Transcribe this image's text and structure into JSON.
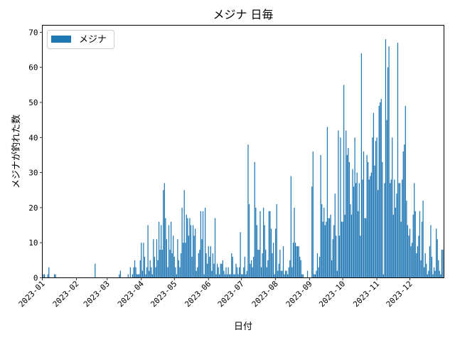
{
  "chart_data": {
    "type": "bar",
    "title": "メジナ 日毎",
    "xlabel": "日付",
    "ylabel": "メジナが釣れた数",
    "legend": {
      "label": "メジナ",
      "location": "top-left"
    },
    "color": "#1f77b4",
    "ylim": [
      0,
      72
    ],
    "xlim": [
      "2023-01-01",
      "2023-12-31"
    ],
    "y_ticks": [
      "0",
      "10",
      "20",
      "30",
      "40",
      "50",
      "60",
      "70"
    ],
    "x_ticks": [
      "2023-01",
      "2023-02",
      "2023-03",
      "2023-04",
      "2023-05",
      "2023-06",
      "2023-07",
      "2023-08",
      "2023-09",
      "2023-10",
      "2023-11",
      "2023-12"
    ],
    "series": [
      {
        "name": "メジナ",
        "points": [
          [
            "2023-01-02",
            1
          ],
          [
            "2023-01-03",
            1
          ],
          [
            "2023-01-06",
            1
          ],
          [
            "2023-01-07",
            3
          ],
          [
            "2023-01-12",
            1
          ],
          [
            "2023-01-13",
            1
          ],
          [
            "2023-02-18",
            4
          ],
          [
            "2023-03-12",
            1
          ],
          [
            "2023-03-13",
            2
          ],
          [
            "2023-03-20",
            1
          ],
          [
            "2023-03-22",
            3
          ],
          [
            "2023-03-24",
            1
          ],
          [
            "2023-03-25",
            3
          ],
          [
            "2023-03-26",
            5
          ],
          [
            "2023-03-27",
            3
          ],
          [
            "2023-03-28",
            1
          ],
          [
            "2023-03-29",
            1
          ],
          [
            "2023-03-30",
            1
          ],
          [
            "2023-03-31",
            5
          ],
          [
            "2023-04-01",
            10
          ],
          [
            "2023-04-02",
            2
          ],
          [
            "2023-04-03",
            10
          ],
          [
            "2023-04-04",
            6
          ],
          [
            "2023-04-05",
            1
          ],
          [
            "2023-04-06",
            3
          ],
          [
            "2023-04-07",
            15
          ],
          [
            "2023-04-08",
            2
          ],
          [
            "2023-04-09",
            5
          ],
          [
            "2023-04-10",
            3
          ],
          [
            "2023-04-11",
            1
          ],
          [
            "2023-04-12",
            11
          ],
          [
            "2023-04-13",
            6
          ],
          [
            "2023-04-14",
            3
          ],
          [
            "2023-04-15",
            11
          ],
          [
            "2023-04-16",
            5
          ],
          [
            "2023-04-17",
            16
          ],
          [
            "2023-04-18",
            8
          ],
          [
            "2023-04-19",
            15
          ],
          [
            "2023-04-20",
            8
          ],
          [
            "2023-04-21",
            25
          ],
          [
            "2023-04-22",
            27
          ],
          [
            "2023-04-23",
            17
          ],
          [
            "2023-04-24",
            11
          ],
          [
            "2023-04-25",
            3
          ],
          [
            "2023-04-26",
            15
          ],
          [
            "2023-04-27",
            8
          ],
          [
            "2023-04-28",
            16
          ],
          [
            "2023-04-29",
            7
          ],
          [
            "2023-04-30",
            12
          ],
          [
            "2023-05-01",
            6
          ],
          [
            "2023-05-02",
            3
          ],
          [
            "2023-05-03",
            1
          ],
          [
            "2023-05-04",
            11
          ],
          [
            "2023-05-05",
            5
          ],
          [
            "2023-05-06",
            3
          ],
          [
            "2023-05-07",
            7
          ],
          [
            "2023-05-08",
            20
          ],
          [
            "2023-05-09",
            10
          ],
          [
            "2023-05-10",
            25
          ],
          [
            "2023-05-11",
            10
          ],
          [
            "2023-05-12",
            18
          ],
          [
            "2023-05-13",
            17
          ],
          [
            "2023-05-14",
            12
          ],
          [
            "2023-05-15",
            17
          ],
          [
            "2023-05-16",
            15
          ],
          [
            "2023-05-17",
            6
          ],
          [
            "2023-05-18",
            15
          ],
          [
            "2023-05-19",
            12
          ],
          [
            "2023-05-20",
            14
          ],
          [
            "2023-05-21",
            2
          ],
          [
            "2023-05-22",
            3
          ],
          [
            "2023-05-23",
            7
          ],
          [
            "2023-05-24",
            8
          ],
          [
            "2023-05-25",
            19
          ],
          [
            "2023-05-26",
            11
          ],
          [
            "2023-05-27",
            19
          ],
          [
            "2023-05-28",
            1
          ],
          [
            "2023-05-29",
            20
          ],
          [
            "2023-05-30",
            7
          ],
          [
            "2023-05-31",
            4
          ],
          [
            "2023-06-01",
            9
          ],
          [
            "2023-06-02",
            6
          ],
          [
            "2023-06-03",
            9
          ],
          [
            "2023-06-04",
            2
          ],
          [
            "2023-06-05",
            7
          ],
          [
            "2023-06-06",
            4
          ],
          [
            "2023-06-07",
            17
          ],
          [
            "2023-06-08",
            1
          ],
          [
            "2023-06-09",
            4
          ],
          [
            "2023-06-10",
            3
          ],
          [
            "2023-06-11",
            1
          ],
          [
            "2023-06-12",
            4
          ],
          [
            "2023-06-13",
            4
          ],
          [
            "2023-06-14",
            5
          ],
          [
            "2023-06-15",
            2
          ],
          [
            "2023-06-16",
            1
          ],
          [
            "2023-06-17",
            3
          ],
          [
            "2023-06-18",
            1
          ],
          [
            "2023-06-19",
            3
          ],
          [
            "2023-06-20",
            1
          ],
          [
            "2023-06-21",
            1
          ],
          [
            "2023-06-22",
            7
          ],
          [
            "2023-06-23",
            6
          ],
          [
            "2023-06-24",
            1
          ],
          [
            "2023-06-25",
            1
          ],
          [
            "2023-06-26",
            4
          ],
          [
            "2023-06-27",
            3
          ],
          [
            "2023-06-28",
            1
          ],
          [
            "2023-06-29",
            3
          ],
          [
            "2023-06-30",
            13
          ],
          [
            "2023-07-01",
            1
          ],
          [
            "2023-07-02",
            1
          ],
          [
            "2023-07-03",
            3
          ],
          [
            "2023-07-04",
            6
          ],
          [
            "2023-07-05",
            1
          ],
          [
            "2023-07-06",
            2
          ],
          [
            "2023-07-07",
            38
          ],
          [
            "2023-07-08",
            21
          ],
          [
            "2023-07-09",
            4
          ],
          [
            "2023-07-10",
            5
          ],
          [
            "2023-07-11",
            3
          ],
          [
            "2023-07-12",
            6
          ],
          [
            "2023-07-13",
            33
          ],
          [
            "2023-07-14",
            20
          ],
          [
            "2023-07-15",
            15
          ],
          [
            "2023-07-16",
            8
          ],
          [
            "2023-07-17",
            8
          ],
          [
            "2023-07-18",
            19
          ],
          [
            "2023-07-19",
            3
          ],
          [
            "2023-07-20",
            7
          ],
          [
            "2023-07-21",
            20
          ],
          [
            "2023-07-22",
            15
          ],
          [
            "2023-07-23",
            8
          ],
          [
            "2023-07-24",
            3
          ],
          [
            "2023-07-25",
            5
          ],
          [
            "2023-07-26",
            19
          ],
          [
            "2023-07-27",
            19
          ],
          [
            "2023-07-28",
            14
          ],
          [
            "2023-07-29",
            7
          ],
          [
            "2023-07-30",
            10
          ],
          [
            "2023-07-31",
            1
          ],
          [
            "2023-08-01",
            14
          ],
          [
            "2023-08-02",
            21
          ],
          [
            "2023-08-03",
            2
          ],
          [
            "2023-08-04",
            4
          ],
          [
            "2023-08-05",
            8
          ],
          [
            "2023-08-06",
            2
          ],
          [
            "2023-08-07",
            2
          ],
          [
            "2023-08-08",
            9
          ],
          [
            "2023-08-09",
            1
          ],
          [
            "2023-08-10",
            2
          ],
          [
            "2023-08-11",
            2
          ],
          [
            "2023-08-12",
            1
          ],
          [
            "2023-08-13",
            3
          ],
          [
            "2023-08-14",
            5
          ],
          [
            "2023-08-15",
            29
          ],
          [
            "2023-08-16",
            3
          ],
          [
            "2023-08-17",
            10
          ],
          [
            "2023-08-18",
            20
          ],
          [
            "2023-08-19",
            10
          ],
          [
            "2023-08-20",
            9
          ],
          [
            "2023-08-21",
            9
          ],
          [
            "2023-08-22",
            9
          ],
          [
            "2023-08-23",
            6
          ],
          [
            "2023-08-24",
            5
          ],
          [
            "2023-08-25",
            1
          ],
          [
            "2023-08-26",
            1
          ],
          [
            "2023-08-30",
            2
          ],
          [
            "2023-09-03",
            26
          ],
          [
            "2023-09-04",
            36
          ],
          [
            "2023-09-05",
            1
          ],
          [
            "2023-09-06",
            1
          ],
          [
            "2023-09-07",
            2
          ],
          [
            "2023-09-08",
            7
          ],
          [
            "2023-09-09",
            3
          ],
          [
            "2023-09-10",
            6
          ],
          [
            "2023-09-11",
            35
          ],
          [
            "2023-09-12",
            21
          ],
          [
            "2023-09-13",
            16
          ],
          [
            "2023-09-14",
            20
          ],
          [
            "2023-09-15",
            15
          ],
          [
            "2023-09-16",
            16
          ],
          [
            "2023-09-17",
            43
          ],
          [
            "2023-09-18",
            17
          ],
          [
            "2023-09-19",
            17
          ],
          [
            "2023-09-20",
            18
          ],
          [
            "2023-09-21",
            5
          ],
          [
            "2023-09-22",
            11
          ],
          [
            "2023-09-23",
            15
          ],
          [
            "2023-09-24",
            24
          ],
          [
            "2023-09-25",
            12
          ],
          [
            "2023-09-26",
            2
          ],
          [
            "2023-09-27",
            42
          ],
          [
            "2023-09-28",
            12
          ],
          [
            "2023-09-29",
            40
          ],
          [
            "2023-09-30",
            16
          ],
          [
            "2023-10-01",
            16
          ],
          [
            "2023-10-02",
            55
          ],
          [
            "2023-10-03",
            18
          ],
          [
            "2023-10-04",
            42
          ],
          [
            "2023-10-05",
            35
          ],
          [
            "2023-10-06",
            37
          ],
          [
            "2023-10-07",
            33
          ],
          [
            "2023-10-08",
            21
          ],
          [
            "2023-10-09",
            18
          ],
          [
            "2023-10-10",
            31
          ],
          [
            "2023-10-11",
            26
          ],
          [
            "2023-10-12",
            40
          ],
          [
            "2023-10-13",
            27
          ],
          [
            "2023-10-14",
            30
          ],
          [
            "2023-10-15",
            19
          ],
          [
            "2023-10-16",
            27
          ],
          [
            "2023-10-17",
            12
          ],
          [
            "2023-10-18",
            64
          ],
          [
            "2023-10-19",
            28
          ],
          [
            "2023-10-20",
            36
          ],
          [
            "2023-10-21",
            17
          ],
          [
            "2023-10-22",
            17
          ],
          [
            "2023-10-23",
            35
          ],
          [
            "2023-10-24",
            33
          ],
          [
            "2023-10-25",
            28
          ],
          [
            "2023-10-26",
            29
          ],
          [
            "2023-10-27",
            30
          ],
          [
            "2023-10-28",
            40
          ],
          [
            "2023-10-29",
            47
          ],
          [
            "2023-10-30",
            32
          ],
          [
            "2023-10-31",
            39
          ],
          [
            "2023-11-01",
            40
          ],
          [
            "2023-11-02",
            25
          ],
          [
            "2023-11-03",
            49
          ],
          [
            "2023-11-04",
            50
          ],
          [
            "2023-11-05",
            51
          ],
          [
            "2023-11-06",
            33
          ],
          [
            "2023-11-07",
            1
          ],
          [
            "2023-11-08",
            27
          ],
          [
            "2023-11-09",
            68
          ],
          [
            "2023-11-10",
            45
          ],
          [
            "2023-11-11",
            60
          ],
          [
            "2023-11-12",
            66
          ],
          [
            "2023-11-13",
            27
          ],
          [
            "2023-11-14",
            28
          ],
          [
            "2023-11-15",
            40
          ],
          [
            "2023-11-16",
            18
          ],
          [
            "2023-11-17",
            28
          ],
          [
            "2023-11-18",
            20
          ],
          [
            "2023-11-19",
            24
          ],
          [
            "2023-11-20",
            67
          ],
          [
            "2023-11-21",
            27
          ],
          [
            "2023-11-22",
            27
          ],
          [
            "2023-11-23",
            16
          ],
          [
            "2023-11-24",
            28
          ],
          [
            "2023-11-25",
            36
          ],
          [
            "2023-11-26",
            38
          ],
          [
            "2023-11-27",
            49
          ],
          [
            "2023-11-28",
            22
          ],
          [
            "2023-11-29",
            15
          ],
          [
            "2023-11-30",
            12
          ],
          [
            "2023-12-01",
            14
          ],
          [
            "2023-12-02",
            9
          ],
          [
            "2023-12-03",
            10
          ],
          [
            "2023-12-04",
            18
          ],
          [
            "2023-12-05",
            27
          ],
          [
            "2023-12-06",
            19
          ],
          [
            "2023-12-07",
            7
          ],
          [
            "2023-12-08",
            9
          ],
          [
            "2023-12-09",
            12
          ],
          [
            "2023-12-10",
            19
          ],
          [
            "2023-12-11",
            5
          ],
          [
            "2023-12-12",
            16
          ],
          [
            "2023-12-13",
            22
          ],
          [
            "2023-12-14",
            3
          ],
          [
            "2023-12-15",
            7
          ],
          [
            "2023-12-16",
            4
          ],
          [
            "2023-12-17",
            1
          ],
          [
            "2023-12-18",
            2
          ],
          [
            "2023-12-19",
            9
          ],
          [
            "2023-12-20",
            15
          ],
          [
            "2023-12-21",
            6
          ],
          [
            "2023-12-22",
            1
          ],
          [
            "2023-12-23",
            3
          ],
          [
            "2023-12-24",
            2
          ],
          [
            "2023-12-25",
            14
          ],
          [
            "2023-12-26",
            11
          ],
          [
            "2023-12-27",
            5
          ],
          [
            "2023-12-28",
            2
          ],
          [
            "2023-12-29",
            1
          ],
          [
            "2023-12-30",
            8
          ],
          [
            "2023-12-31",
            8
          ]
        ]
      }
    ]
  }
}
